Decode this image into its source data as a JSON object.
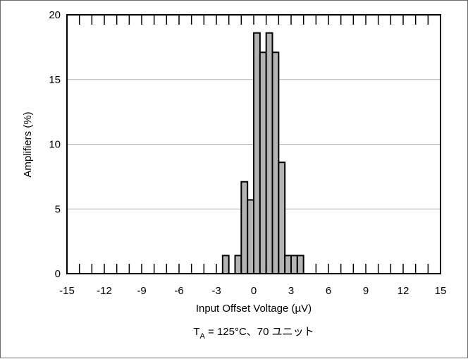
{
  "chart_data": {
    "type": "bar",
    "title": "",
    "xlabel": "Input Offset Voltage (µV)",
    "ylabel": "Amplifiers (%)",
    "xlim": [
      -15,
      15
    ],
    "ylim": [
      0,
      20
    ],
    "x_ticks": [
      -15,
      -12,
      -9,
      -6,
      -3,
      0,
      3,
      6,
      9,
      12,
      15
    ],
    "y_ticks": [
      0,
      5,
      10,
      15,
      20
    ],
    "bin_width": 0.5,
    "grid": "horizontal",
    "bar_color": "#b4b4b4",
    "bar_edge_color": "#000000",
    "bins": [
      {
        "x0": -2.5,
        "value": 1.4
      },
      {
        "x0": -2.0,
        "value": 0
      },
      {
        "x0": -1.5,
        "value": 1.4
      },
      {
        "x0": -1.0,
        "value": 7.1
      },
      {
        "x0": -0.5,
        "value": 5.7
      },
      {
        "x0": 0.0,
        "value": 18.6
      },
      {
        "x0": 0.5,
        "value": 17.1
      },
      {
        "x0": 1.0,
        "value": 18.6
      },
      {
        "x0": 1.5,
        "value": 17.1
      },
      {
        "x0": 2.0,
        "value": 8.6
      },
      {
        "x0": 2.5,
        "value": 1.4
      },
      {
        "x0": 3.0,
        "value": 1.4
      },
      {
        "x0": 3.5,
        "value": 1.4
      }
    ],
    "annotation": {
      "main": "T",
      "sub": "A",
      "rest": " = 125°C、70 ユニット"
    }
  }
}
